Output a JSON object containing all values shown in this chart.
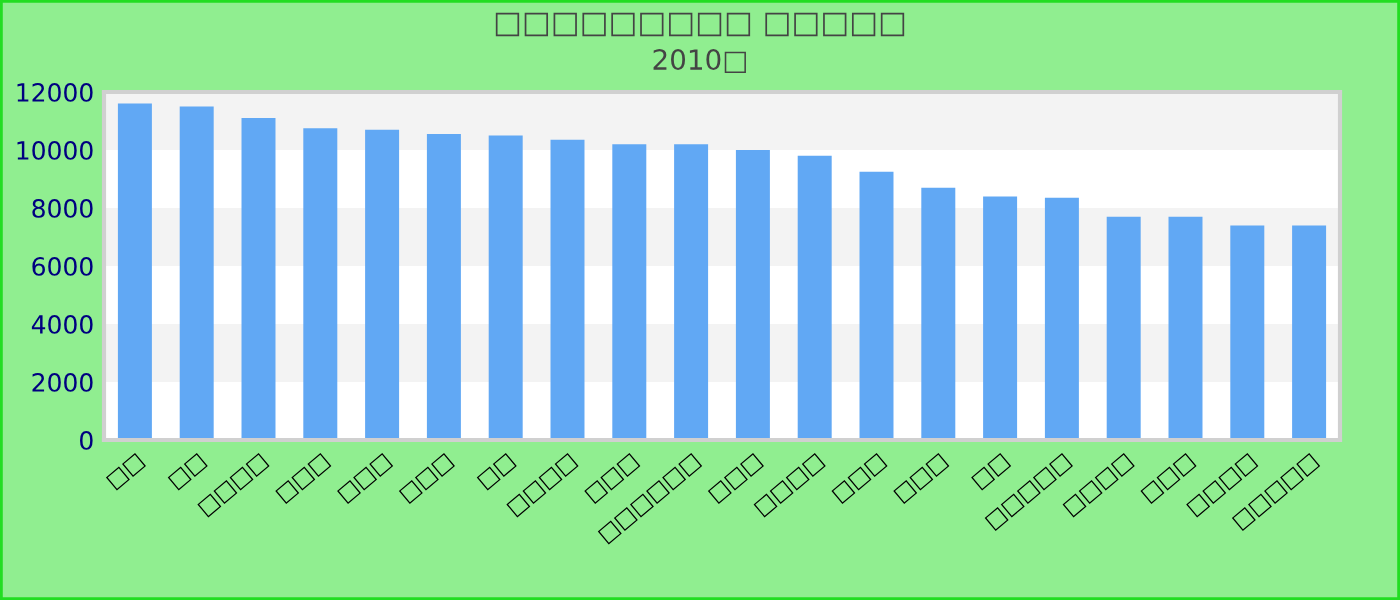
{
  "chart_data": {
    "type": "bar",
    "title": "□□□□□□□□□ □□□□□",
    "subtitle": "2010□",
    "categories": [
      "□□",
      "□□",
      "□□□□",
      "□□□",
      "□□□",
      "□□□",
      "□□",
      "□□□□",
      "□□□",
      "□□□□□□",
      "□□□",
      "□□□□",
      "□□□",
      "□□□",
      "□□",
      "□□□□□",
      "□□□□",
      "□□□",
      "□□□□",
      "□□□□□"
    ],
    "values": [
      11600,
      11500,
      11100,
      10750,
      10700,
      10550,
      10500,
      10350,
      10200,
      10200,
      10000,
      9800,
      9250,
      8700,
      8400,
      8350,
      7700,
      7700,
      7400,
      7400
    ],
    "color": "#61a8f4",
    "ylim": [
      0,
      12000
    ],
    "yticks": [
      0,
      2000,
      4000,
      6000,
      8000,
      10000,
      12000
    ],
    "legend": false
  }
}
